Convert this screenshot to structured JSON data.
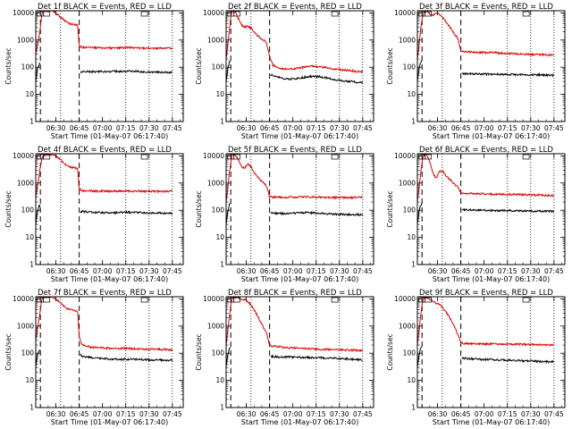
{
  "figure": {
    "x_ticks": [
      "06:30",
      "06:45",
      "07:00",
      "07:15",
      "07:30",
      "07:45"
    ],
    "x_label": "Start Time (01-May-07 06:17:40)",
    "y_label": "Counts/sec",
    "y_ticks": [
      "1",
      "10",
      "100",
      "1000",
      "10000"
    ],
    "series_colors": {
      "events": "#000000",
      "lld": "#e00000"
    }
  },
  "chart_data": [
    {
      "type": "line",
      "title": "Det 1f BLACK = Events, RED = LLD",
      "x_unit": "minutes after 06:17:40",
      "xlim": [
        0,
        95
      ],
      "ylim": [
        1,
        12000
      ],
      "y_scale": "log",
      "grid": "dotted verticals",
      "vlines_dashed": [
        3,
        28
      ],
      "vlines_dotted": [
        16
      ],
      "series": [
        {
          "color": "#e00000",
          "x": [
            0,
            1,
            2,
            3,
            4,
            6,
            8,
            10,
            12,
            14,
            16,
            18,
            20,
            22,
            24,
            26,
            27,
            28,
            30,
            40,
            50,
            60,
            70,
            80,
            88
          ],
          "y": [
            300,
            600,
            1200,
            3000,
            10000,
            12000,
            12000,
            12000,
            11000,
            9000,
            7000,
            5500,
            4500,
            4000,
            3800,
            3700,
            3600,
            600,
            540,
            520,
            510,
            520,
            500,
            500,
            500
          ]
        },
        {
          "color": "#000000",
          "x": [
            0,
            1,
            2,
            3,
            28.5,
            30,
            40,
            50,
            60,
            70,
            80,
            88
          ],
          "y": [
            30,
            80,
            120,
            150,
            60,
            70,
            68,
            70,
            72,
            68,
            66,
            65
          ]
        }
      ]
    },
    {
      "type": "line",
      "title": "Det 2f BLACK = Events, RED = LLD",
      "x_unit": "minutes after 06:17:40",
      "xlim": [
        0,
        95
      ],
      "ylim": [
        1,
        12000
      ],
      "y_scale": "log",
      "grid": "dotted verticals",
      "vlines_dashed": [
        3,
        28
      ],
      "vlines_dotted": [
        16
      ],
      "series": [
        {
          "color": "#e00000",
          "x": [
            0,
            1,
            2,
            3,
            4,
            6,
            8,
            10,
            12,
            14,
            16,
            18,
            20,
            22,
            24,
            26,
            28,
            30,
            35,
            40,
            45,
            50,
            55,
            60,
            65,
            70,
            75,
            80,
            85,
            88
          ],
          "y": [
            200,
            600,
            2000,
            8000,
            12000,
            11000,
            6000,
            3500,
            3000,
            3200,
            2800,
            2000,
            1500,
            1200,
            1000,
            800,
            250,
            120,
            90,
            85,
            90,
            100,
            110,
            105,
            95,
            85,
            80,
            75,
            70,
            68
          ]
        },
        {
          "color": "#000000",
          "x": [
            0,
            1,
            2,
            3,
            28.5,
            30,
            35,
            40,
            45,
            50,
            55,
            60,
            65,
            70,
            75,
            80,
            85,
            88
          ],
          "y": [
            30,
            80,
            150,
            200,
            55,
            50,
            40,
            36,
            38,
            42,
            46,
            45,
            40,
            35,
            32,
            30,
            28,
            28
          ]
        }
      ]
    },
    {
      "type": "line",
      "title": "Det 3f BLACK = Events, RED = LLD",
      "x_unit": "minutes after 06:17:40",
      "xlim": [
        0,
        95
      ],
      "ylim": [
        1,
        12000
      ],
      "y_scale": "log",
      "grid": "dotted verticals",
      "vlines_dashed": [
        3,
        28
      ],
      "vlines_dotted": [
        16
      ],
      "series": [
        {
          "color": "#e00000",
          "x": [
            0,
            1,
            2,
            3,
            4,
            6,
            8,
            10,
            12,
            14,
            16,
            18,
            20,
            22,
            24,
            26,
            28,
            30,
            40,
            50,
            60,
            70,
            80,
            88
          ],
          "y": [
            200,
            600,
            2000,
            6000,
            10000,
            12000,
            9000,
            8000,
            10000,
            9000,
            7000,
            5000,
            3500,
            2500,
            1600,
            1200,
            400,
            380,
            350,
            340,
            320,
            300,
            290,
            280
          ]
        },
        {
          "color": "#000000",
          "x": [
            0,
            1,
            2,
            3,
            28.5,
            30,
            40,
            50,
            60,
            70,
            80,
            88
          ],
          "y": [
            30,
            80,
            150,
            200,
            60,
            58,
            56,
            55,
            54,
            53,
            52,
            50
          ]
        }
      ]
    },
    {
      "type": "line",
      "title": "Det 4f BLACK = Events, RED = LLD",
      "x_unit": "minutes after 06:17:40",
      "xlim": [
        0,
        95
      ],
      "ylim": [
        1,
        12000
      ],
      "y_scale": "log",
      "grid": "dotted verticals",
      "vlines_dashed": [
        3,
        28
      ],
      "vlines_dotted": [
        16
      ],
      "series": [
        {
          "color": "#e00000",
          "x": [
            0,
            1,
            2,
            3,
            4,
            6,
            8,
            10,
            12,
            14,
            16,
            18,
            20,
            22,
            24,
            26,
            27,
            28,
            30,
            40,
            50,
            60,
            70,
            80,
            88
          ],
          "y": [
            300,
            700,
            1500,
            4000,
            9000,
            11000,
            11000,
            11000,
            10500,
            9000,
            7000,
            5500,
            4500,
            4000,
            3700,
            3500,
            3300,
            600,
            520,
            500,
            500,
            510,
            500,
            490,
            500
          ]
        },
        {
          "color": "#000000",
          "x": [
            0,
            1,
            2,
            3,
            28.5,
            30,
            40,
            50,
            60,
            70,
            80,
            88
          ],
          "y": [
            30,
            80,
            140,
            160,
            85,
            90,
            82,
            80,
            85,
            80,
            78,
            76
          ]
        }
      ]
    },
    {
      "type": "line",
      "title": "Det 5f BLACK = Events, RED = LLD",
      "x_unit": "minutes after 06:17:40",
      "xlim": [
        0,
        95
      ],
      "ylim": [
        1,
        12000
      ],
      "y_scale": "log",
      "grid": "dotted verticals",
      "vlines_dashed": [
        3,
        28
      ],
      "vlines_dotted": [
        16
      ],
      "series": [
        {
          "color": "#e00000",
          "x": [
            0,
            1,
            2,
            3,
            4,
            6,
            8,
            10,
            12,
            14,
            16,
            18,
            20,
            22,
            24,
            26,
            28,
            30,
            40,
            50,
            60,
            70,
            80,
            88
          ],
          "y": [
            200,
            600,
            2000,
            6000,
            11000,
            11000,
            7000,
            4000,
            3500,
            5000,
            4000,
            2500,
            1800,
            1300,
            1000,
            800,
            320,
            300,
            300,
            310,
            300,
            290,
            290,
            300
          ]
        },
        {
          "color": "#000000",
          "x": [
            0,
            1,
            2,
            3,
            28.5,
            30,
            40,
            50,
            60,
            70,
            80,
            88
          ],
          "y": [
            30,
            80,
            150,
            180,
            80,
            78,
            75,
            82,
            78,
            72,
            70,
            68
          ]
        }
      ]
    },
    {
      "type": "line",
      "title": "Det 6f BLACK = Events, RED = LLD",
      "x_unit": "minutes after 06:17:40",
      "xlim": [
        0,
        95
      ],
      "ylim": [
        1,
        12000
      ],
      "y_scale": "log",
      "grid": "dotted verticals",
      "vlines_dashed": [
        3,
        28
      ],
      "vlines_dotted": [
        16
      ],
      "series": [
        {
          "color": "#e00000",
          "x": [
            0,
            1,
            2,
            3,
            4,
            6,
            8,
            10,
            12,
            14,
            16,
            18,
            20,
            22,
            24,
            26,
            28,
            30,
            40,
            50,
            60,
            70,
            80,
            88
          ],
          "y": [
            200,
            600,
            2000,
            6000,
            11000,
            11000,
            6000,
            2500,
            1500,
            2500,
            3000,
            2000,
            1500,
            1200,
            900,
            700,
            450,
            420,
            400,
            390,
            380,
            370,
            360,
            350
          ]
        },
        {
          "color": "#000000",
          "x": [
            0,
            1,
            2,
            3,
            28.5,
            30,
            40,
            50,
            60,
            70,
            80,
            88
          ],
          "y": [
            30,
            80,
            150,
            180,
            110,
            105,
            100,
            98,
            96,
            94,
            92,
            90
          ]
        }
      ]
    },
    {
      "type": "line",
      "title": "Det 7f BLACK = Events, RED = LLD",
      "x_unit": "minutes after 06:17:40",
      "xlim": [
        0,
        95
      ],
      "ylim": [
        1,
        12000
      ],
      "y_scale": "log",
      "grid": "dotted verticals",
      "vlines_dashed": [
        3,
        28
      ],
      "vlines_dotted": [
        16
      ],
      "series": [
        {
          "color": "#e00000",
          "x": [
            0,
            1,
            2,
            3,
            4,
            6,
            8,
            10,
            12,
            14,
            16,
            18,
            20,
            22,
            24,
            26,
            27,
            28,
            29,
            30,
            35,
            40,
            50,
            60,
            70,
            80,
            88
          ],
          "y": [
            300,
            700,
            1500,
            4000,
            10000,
            12000,
            12000,
            12000,
            11000,
            9000,
            7000,
            5500,
            4500,
            4000,
            3700,
            3600,
            3500,
            400,
            250,
            200,
            170,
            160,
            150,
            150,
            140,
            140,
            135
          ]
        },
        {
          "color": "#000000",
          "x": [
            0,
            1,
            2,
            3,
            28.5,
            30,
            40,
            50,
            60,
            70,
            80,
            88
          ],
          "y": [
            30,
            80,
            120,
            150,
            90,
            75,
            65,
            60,
            60,
            58,
            56,
            55
          ]
        }
      ]
    },
    {
      "type": "line",
      "title": "Det 8f BLACK = Events, RED = LLD",
      "x_unit": "minutes after 06:17:40",
      "xlim": [
        0,
        95
      ],
      "ylim": [
        1,
        12000
      ],
      "y_scale": "log",
      "grid": "dotted verticals",
      "vlines_dashed": [
        3,
        28
      ],
      "vlines_dotted": [
        16
      ],
      "series": [
        {
          "color": "#e00000",
          "x": [
            0,
            1,
            2,
            3,
            4,
            6,
            8,
            10,
            12,
            14,
            16,
            18,
            20,
            22,
            24,
            26,
            28,
            30,
            40,
            50,
            60,
            70,
            80,
            88
          ],
          "y": [
            200,
            600,
            2000,
            6000,
            11000,
            11000,
            11000,
            9000,
            9500,
            8000,
            6000,
            4000,
            2500,
            1500,
            900,
            600,
            200,
            180,
            160,
            150,
            140,
            135,
            130,
            125
          ]
        },
        {
          "color": "#000000",
          "x": [
            0,
            1,
            2,
            3,
            28.5,
            30,
            40,
            50,
            60,
            70,
            80,
            88
          ],
          "y": [
            30,
            80,
            150,
            180,
            80,
            75,
            72,
            70,
            68,
            65,
            60,
            58
          ]
        }
      ]
    },
    {
      "type": "line",
      "title": "Det 9f BLACK = Events, RED = LLD",
      "x_unit": "minutes after 06:17:40",
      "xlim": [
        0,
        95
      ],
      "ylim": [
        1,
        12000
      ],
      "y_scale": "log",
      "grid": "dotted verticals",
      "vlines_dashed": [
        3,
        28
      ],
      "vlines_dotted": [
        16
      ],
      "series": [
        {
          "color": "#e00000",
          "x": [
            0,
            1,
            2,
            3,
            4,
            6,
            8,
            10,
            12,
            14,
            16,
            18,
            20,
            22,
            24,
            26,
            28,
            30,
            40,
            50,
            60,
            70,
            80,
            88
          ],
          "y": [
            200,
            600,
            2000,
            6000,
            11000,
            11000,
            10000,
            8000,
            7000,
            6500,
            5000,
            3500,
            2500,
            1500,
            900,
            500,
            250,
            230,
            220,
            220,
            215,
            210,
            205,
            200
          ]
        },
        {
          "color": "#000000",
          "x": [
            0,
            1,
            2,
            3,
            28.5,
            30,
            40,
            50,
            60,
            70,
            80,
            88
          ],
          "y": [
            30,
            80,
            150,
            180,
            70,
            65,
            60,
            58,
            55,
            52,
            50,
            48
          ]
        }
      ]
    }
  ]
}
